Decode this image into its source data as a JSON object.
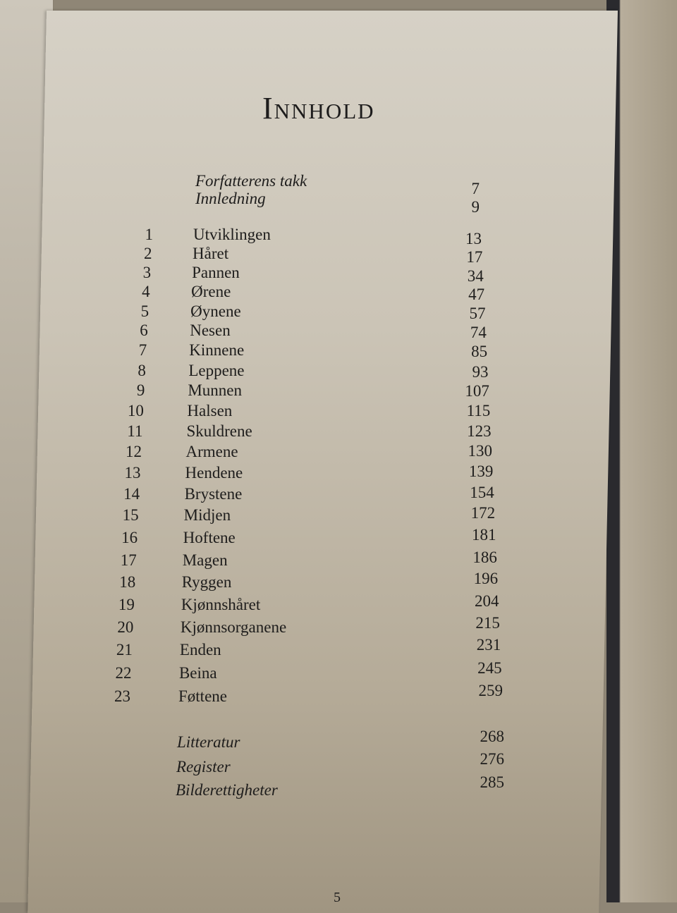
{
  "title": "Innhold",
  "front_matter": [
    {
      "title": "Forfatterens takk",
      "page": "7"
    },
    {
      "title": "Innledning",
      "page": "9"
    }
  ],
  "chapters": [
    {
      "number": "1",
      "title": "Utviklingen",
      "page": "13"
    },
    {
      "number": "2",
      "title": "Håret",
      "page": "17"
    },
    {
      "number": "3",
      "title": "Pannen",
      "page": "34"
    },
    {
      "number": "4",
      "title": "Ørene",
      "page": "47"
    },
    {
      "number": "5",
      "title": "Øynene",
      "page": "57"
    },
    {
      "number": "6",
      "title": "Nesen",
      "page": "74"
    },
    {
      "number": "7",
      "title": "Kinnene",
      "page": "85"
    },
    {
      "number": "8",
      "title": "Leppene",
      "page": "93"
    },
    {
      "number": "9",
      "title": "Munnen",
      "page": "107"
    },
    {
      "number": "10",
      "title": "Halsen",
      "page": "115"
    },
    {
      "number": "11",
      "title": "Skuldrene",
      "page": "123"
    },
    {
      "number": "12",
      "title": "Armene",
      "page": "130"
    },
    {
      "number": "13",
      "title": "Hendene",
      "page": "139"
    },
    {
      "number": "14",
      "title": "Brystene",
      "page": "154"
    },
    {
      "number": "15",
      "title": "Midjen",
      "page": "172"
    },
    {
      "number": "16",
      "title": "Hoftene",
      "page": "181"
    },
    {
      "number": "17",
      "title": "Magen",
      "page": "186"
    },
    {
      "number": "18",
      "title": "Ryggen",
      "page": "196"
    },
    {
      "number": "19",
      "title": "Kjønnshåret",
      "page": "204"
    },
    {
      "number": "20",
      "title": "Kjønnsorganene",
      "page": "215"
    },
    {
      "number": "21",
      "title": "Enden",
      "page": "231"
    },
    {
      "number": "22",
      "title": "Beina",
      "page": "245"
    },
    {
      "number": "23",
      "title": "Føttene",
      "page": "259"
    }
  ],
  "back_matter": [
    {
      "title": "Litteratur",
      "page": "268"
    },
    {
      "title": "Register",
      "page": "276"
    },
    {
      "title": "Bilderettigheter",
      "page": "285"
    }
  ],
  "page_number": "5"
}
